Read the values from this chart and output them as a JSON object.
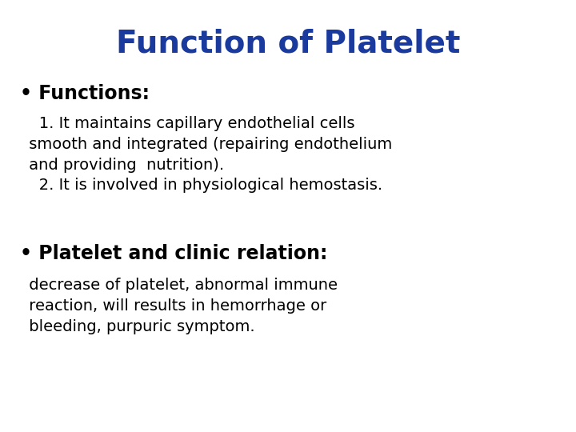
{
  "title": "Function of Platelet",
  "title_color": "#1a3a9e",
  "title_fontsize": 28,
  "background_color": "#ffffff",
  "bullet1_label": "• Functions:",
  "bullet1_color": "#000000",
  "bullet1_fontsize": 17,
  "body1_line1": "   1. It maintains capillary endothelial cells",
  "body1_line2": " smooth and integrated (repairing endothelium",
  "body1_line3": " and providing  nutrition).",
  "body1_line4": "   2. It is involved in physiological hemostasis.",
  "body1_fontsize": 14,
  "body1_color": "#000000",
  "bullet2_label": "• Platelet and clinic relation:",
  "bullet2_color": "#000000",
  "bullet2_fontsize": 17,
  "body2_line1": " decrease of platelet, abnormal immune",
  "body2_line2": " reaction, will results in hemorrhage or",
  "body2_line3": " bleeding, purpuric symptom.",
  "body2_fontsize": 14,
  "body2_color": "#000000",
  "fig_width": 7.2,
  "fig_height": 5.4,
  "dpi": 100
}
